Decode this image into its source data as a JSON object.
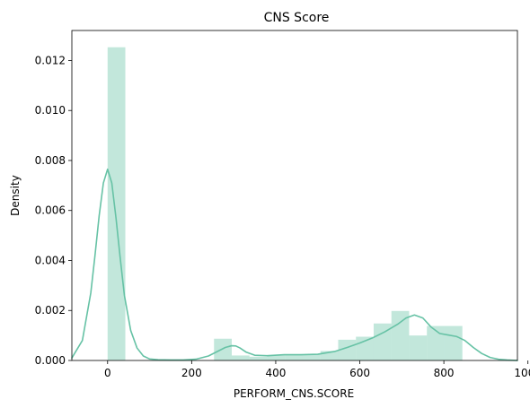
{
  "chart_data": {
    "type": "bar",
    "title": "CNS Score",
    "xlabel": "PERFORM_CNS.SCORE",
    "ylabel": "Density",
    "xlim": [
      -85,
      975
    ],
    "ylim": [
      0,
      0.0132
    ],
    "grid": false,
    "legend": "none",
    "xticks": [
      0,
      200,
      400,
      600,
      800,
      1000
    ],
    "xtick_labels": [
      "0",
      "200",
      "400",
      "600",
      "800",
      "1000"
    ],
    "yticks": [
      0.0,
      0.002,
      0.004,
      0.006,
      0.008,
      0.01,
      0.012
    ],
    "ytick_labels": [
      "0.000",
      "0.002",
      "0.004",
      "0.006",
      "0.008",
      "0.010",
      "0.012"
    ],
    "histogram": {
      "bin_edges": [
        0,
        42.2,
        84.4,
        126.6,
        168.8,
        211.0,
        253.2,
        295.4,
        337.6,
        379.8,
        422.0,
        464.2,
        506.4,
        548.6,
        590.8,
        633.0,
        675.2,
        717.4,
        759.6,
        801.8,
        844.0
      ],
      "values": [
        0.01253,
        0.0,
        0.0,
        0.0,
        0.0,
        0.0,
        0.00087,
        0.0002,
        0.00015,
        0.00022,
        0.00025,
        0.00025,
        0.00038,
        0.00083,
        0.00095,
        0.00148,
        0.00198,
        0.001,
        0.00138,
        0.00138
      ],
      "color": "#66c2a5",
      "opacity": 0.4
    },
    "kde": {
      "color": "#66c2a5",
      "x": [
        -85,
        -60,
        -40,
        -30,
        -20,
        -10,
        0,
        10,
        20,
        30,
        40,
        55,
        70,
        85,
        100,
        120,
        150,
        180,
        210,
        240,
        260,
        280,
        295,
        305,
        315,
        330,
        350,
        380,
        420,
        460,
        500,
        540,
        570,
        600,
        630,
        660,
        690,
        710,
        730,
        750,
        770,
        790,
        810,
        830,
        850,
        870,
        890,
        910,
        930,
        950,
        975
      ],
      "y": [
        0.0001,
        0.0008,
        0.0027,
        0.0042,
        0.0058,
        0.0071,
        0.00765,
        0.0071,
        0.0057,
        0.0041,
        0.0026,
        0.0012,
        0.0005,
        0.00018,
        6e-05,
        3e-05,
        2e-05,
        2e-05,
        5e-05,
        0.00018,
        0.00035,
        0.00052,
        0.00059,
        0.00058,
        0.0005,
        0.00033,
        0.00021,
        0.00019,
        0.00023,
        0.00023,
        0.00025,
        0.00036,
        0.00052,
        0.0007,
        0.0009,
        0.00115,
        0.00145,
        0.0017,
        0.00182,
        0.0017,
        0.00133,
        0.00108,
        0.00102,
        0.00096,
        0.0008,
        0.00052,
        0.00028,
        0.00012,
        5e-05,
        2e-05,
        0.0
      ]
    }
  }
}
